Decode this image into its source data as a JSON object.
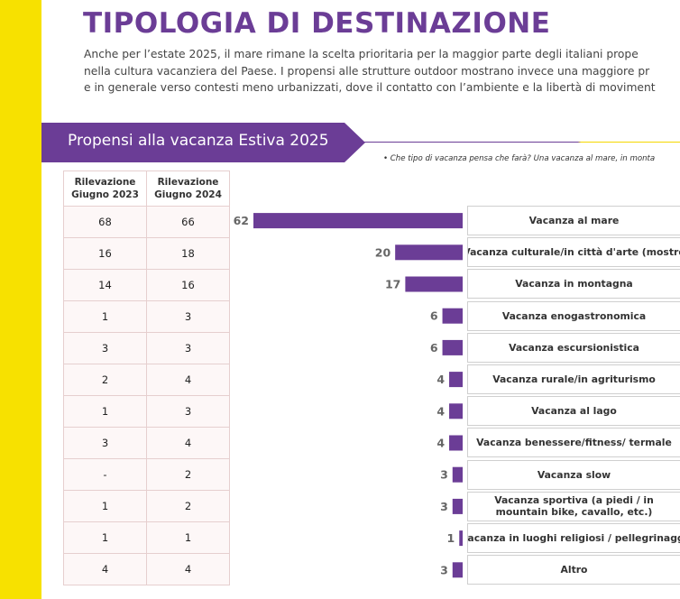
{
  "title": "TIPOLOGIA DI DESTINAZIONE",
  "intro_lines": [
    "Anche per l’estate 2025, il mare rimane la scelta prioritaria per la maggior parte degli italiani prope",
    "nella cultura vacanziera del Paese. I propensi alle strutture outdoor mostrano invece una maggiore pr",
    "e in generale verso contesti meno urbanizzati, dove il contatto con l’ambiente e la libertà di moviment"
  ],
  "section_label": "Propensi alla vacanza Estiva 2025",
  "question": "• Che tipo di vacanza pensa che farà? Una vacanza al mare, in monta",
  "table": {
    "headers": [
      "Rilevazione\nGiugno 2023",
      "Rilevazione\nGiugno 2024"
    ],
    "rows": [
      [
        "68",
        "66"
      ],
      [
        "16",
        "18"
      ],
      [
        "14",
        "16"
      ],
      [
        "1",
        "3"
      ],
      [
        "3",
        "3"
      ],
      [
        "2",
        "4"
      ],
      [
        "1",
        "3"
      ],
      [
        "3",
        "4"
      ],
      [
        "-",
        "2"
      ],
      [
        "1",
        "2"
      ],
      [
        "1",
        "1"
      ],
      [
        "4",
        "4"
      ]
    ]
  },
  "colors": {
    "accent": "#6b3d96",
    "yellow": "#f7e100",
    "label_text": "#666666"
  },
  "chart_data": {
    "type": "bar",
    "orientation": "horizontal",
    "direction": "right-to-left",
    "categories": [
      "Vacanza al mare",
      "Vacanza culturale/in città d'arte (mostre",
      "Vacanza in montagna",
      "Vacanza enogastronomica",
      "Vacanza escursionistica",
      "Vacanza rurale/in agriturismo",
      "Vacanza al lago",
      "Vacanza benessere/fitness/ termale",
      "Vacanza slow",
      "Vacanza sportiva (a piedi / in mountain bike, cavallo, etc.)",
      "Vacanza in luoghi religiosi / pellegrinaggi",
      "Altro"
    ],
    "values": [
      62,
      20,
      17,
      6,
      6,
      4,
      4,
      4,
      3,
      3,
      1,
      3
    ],
    "xlim": [
      0,
      62
    ]
  }
}
